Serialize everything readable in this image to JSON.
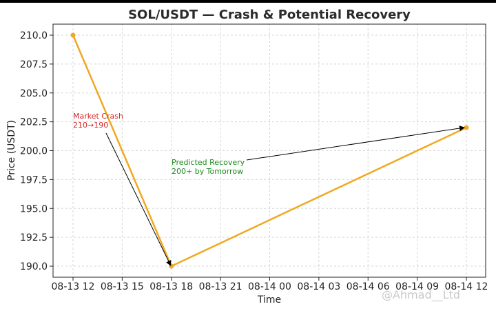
{
  "chart_data": {
    "type": "line",
    "title": "SOL/USDT — Crash & Potential Recovery",
    "xlabel": "Time",
    "ylabel": "Price (USDT)",
    "grid": true,
    "x_tick_labels": [
      "08-13 12",
      "08-13 15",
      "08-13 18",
      "08-13 21",
      "08-14 00",
      "08-14 03",
      "08-14 06",
      "08-14 09",
      "08-14 12"
    ],
    "y_tick_labels": [
      "190.0",
      "192.5",
      "195.0",
      "197.5",
      "200.0",
      "202.5",
      "205.0",
      "207.5",
      "210.0"
    ],
    "ylim": [
      189,
      211
    ],
    "x_hours_range": [
      12,
      36
    ],
    "series": [
      {
        "color": "#f0a820",
        "points": [
          {
            "x": "08-13 12:00",
            "y": 210
          },
          {
            "x": "08-13 18:00",
            "y": 190
          },
          {
            "x": "08-14 12:00",
            "y": 202
          }
        ]
      }
    ],
    "annotations": [
      {
        "lines": [
          "Market Crash",
          "210→190"
        ],
        "color": "#d62728",
        "target": {
          "x": "08-13 18:00",
          "y": 190
        }
      },
      {
        "lines": [
          "Predicted Recovery",
          "200+ by Tomorrow"
        ],
        "color": "#1a8a1a",
        "target": {
          "x": "08-14 12:00",
          "y": 202
        }
      }
    ]
  },
  "watermark": "@Ahmad__Ltd"
}
